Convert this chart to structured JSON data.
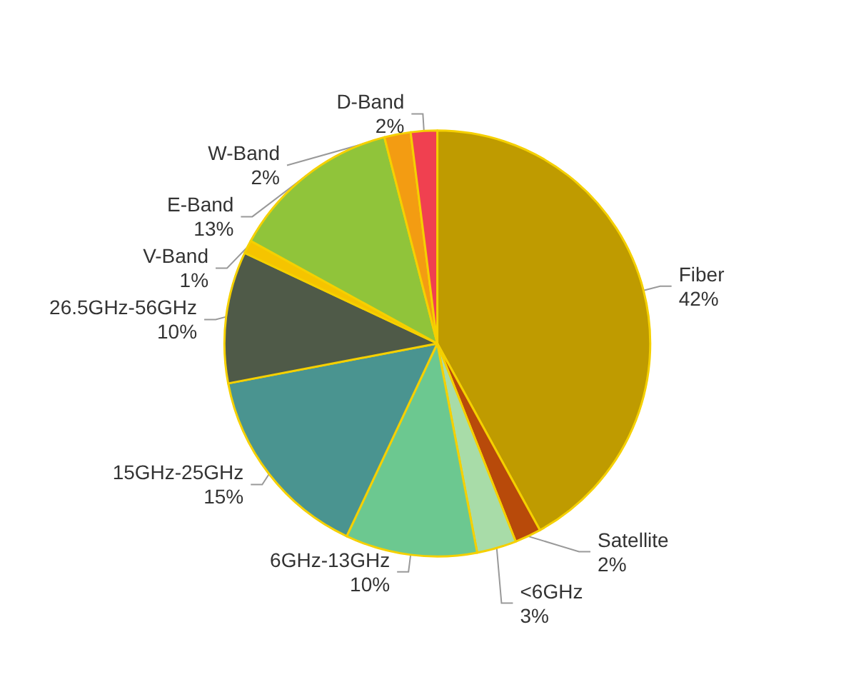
{
  "chart_data": {
    "type": "pie",
    "categories": [
      "Fiber",
      "Satellite",
      "<6GHz",
      "6GHz-13GHz",
      "15GHz-25GHz",
      "26.5GHz-56GHz",
      "V-Band",
      "E-Band",
      "W-Band",
      "D-Band"
    ],
    "values": [
      42,
      2,
      3,
      10,
      15,
      10,
      1,
      13,
      2,
      2
    ],
    "colors": [
      "#bf9b00",
      "#b84a0a",
      "#a8dca8",
      "#6cc890",
      "#4a9490",
      "#4f5a48",
      "#f5c400",
      "#90c43a",
      "#f39c12",
      "#f04050"
    ],
    "value_labels": [
      "42%",
      "2%",
      "3%",
      "10%",
      "15%",
      "10%",
      "1%",
      "13%",
      "2%",
      "2%"
    ]
  }
}
